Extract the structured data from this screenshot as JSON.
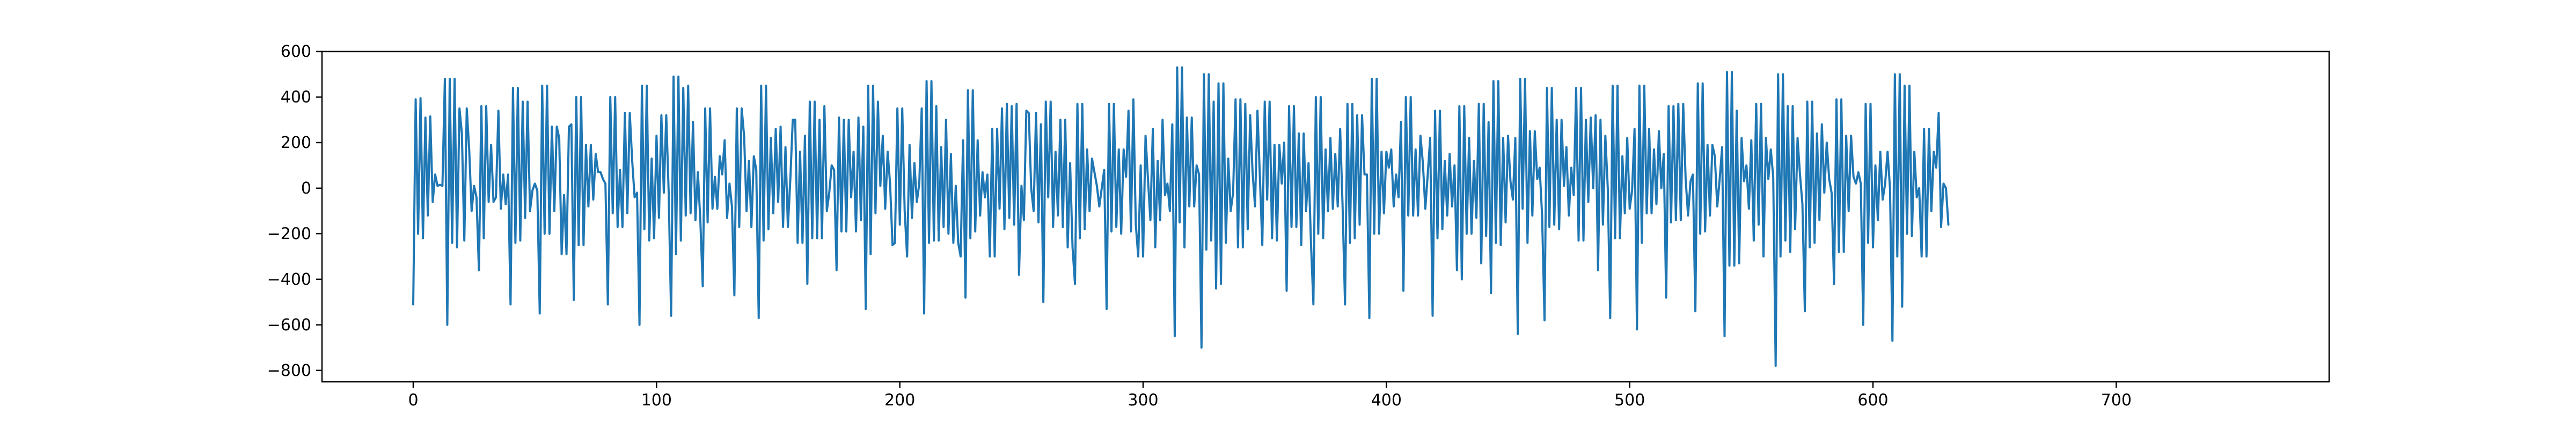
{
  "chart_data": {
    "type": "line",
    "title": "",
    "xlabel": "",
    "ylabel": "",
    "xlim": [
      -37.5,
      787.5
    ],
    "ylim": [
      -850,
      600
    ],
    "x_ticks": [
      0,
      100,
      200,
      300,
      400,
      500,
      600,
      700
    ],
    "x_tick_labels": [
      "0",
      "100",
      "200",
      "300",
      "400",
      "500",
      "600",
      "700"
    ],
    "y_ticks": [
      600,
      400,
      200,
      0,
      -200,
      -400,
      -600,
      -800
    ],
    "y_tick_labels": [
      "600",
      "400",
      "200",
      "0",
      "−200",
      "−400",
      "−600",
      "−800"
    ],
    "grid": false,
    "legend": "none",
    "series_color": "#1f77b4",
    "series": [
      {
        "x_start": 0,
        "x_step": 1,
        "values": [
          -510,
          390,
          -200,
          395,
          -220,
          310,
          -120,
          315,
          -60,
          60,
          10,
          15,
          10,
          480,
          -600,
          480,
          -240,
          480,
          -260,
          350,
          240,
          -230,
          350,
          170,
          -100,
          10,
          -40,
          -360,
          360,
          -220,
          360,
          -60,
          190,
          -60,
          -40,
          340,
          -90,
          60,
          -70,
          60,
          -510,
          440,
          -240,
          440,
          -230,
          380,
          -130,
          380,
          -100,
          -10,
          20,
          -10,
          -550,
          450,
          -200,
          450,
          -200,
          270,
          -100,
          270,
          220,
          -290,
          -30,
          -290,
          270,
          280,
          -490,
          400,
          -250,
          400,
          -250,
          190,
          -80,
          190,
          -50,
          150,
          70,
          70,
          40,
          20,
          -510,
          400,
          -110,
          400,
          -170,
          80,
          -170,
          330,
          -110,
          330,
          120,
          -40,
          -20,
          -600,
          450,
          -180,
          450,
          -230,
          130,
          -220,
          230,
          -130,
          320,
          -20,
          320,
          -20,
          -560,
          490,
          -290,
          490,
          -230,
          440,
          -120,
          450,
          -110,
          290,
          -140,
          70,
          -140,
          -430,
          350,
          -150,
          350,
          -90,
          50,
          -90,
          140,
          60,
          210,
          -130,
          20,
          -80,
          -470,
          350,
          -170,
          350,
          230,
          -100,
          120,
          -170,
          140,
          80,
          -570,
          450,
          -230,
          450,
          -180,
          220,
          -110,
          260,
          -60,
          270,
          -170,
          180,
          -170,
          40,
          300,
          300,
          -240,
          160,
          -240,
          230,
          -420,
          380,
          -220,
          380,
          -220,
          300,
          -220,
          360,
          -100,
          -20,
          100,
          80,
          -360,
          310,
          -190,
          300,
          -190,
          300,
          -40,
          160,
          -190,
          310,
          -140,
          270,
          -530,
          450,
          -290,
          450,
          -110,
          380,
          10,
          230,
          -90,
          160,
          20,
          -250,
          -240,
          350,
          -160,
          350,
          -100,
          -300,
          190,
          -130,
          110,
          -60,
          20,
          350,
          -550,
          470,
          -240,
          470,
          -230,
          360,
          -230,
          180,
          -170,
          300,
          -200,
          150,
          -240,
          10,
          -240,
          -300,
          210,
          -480,
          430,
          -220,
          430,
          -190,
          210,
          -120,
          70,
          -40,
          60,
          -300,
          260,
          -300,
          260,
          -90,
          350,
          -180,
          370,
          -130,
          360,
          -160,
          370,
          -380,
          10,
          -140,
          340,
          330,
          0,
          -100,
          330,
          -150,
          280,
          -500,
          380,
          -40,
          380,
          -170,
          160,
          -120,
          300,
          -170,
          300,
          -260,
          110,
          -260,
          -420,
          370,
          -220,
          370,
          -180,
          170,
          -100,
          130,
          70,
          10,
          -80,
          0,
          80,
          -530,
          370,
          -190,
          370,
          -170,
          170,
          -200,
          170,
          50,
          340,
          -190,
          390,
          -160,
          -300,
          100,
          -300,
          230,
          40,
          -140,
          260,
          -260,
          120,
          -140,
          300,
          -30,
          20,
          -100,
          280,
          -650,
          530,
          -150,
          530,
          -260,
          310,
          -80,
          310,
          -80,
          100,
          60,
          -700,
          500,
          -270,
          500,
          -230,
          380,
          -440,
          460,
          -420,
          460,
          -240,
          130,
          -100,
          -20,
          390,
          -260,
          390,
          -260,
          370,
          -180,
          320,
          70,
          -80,
          340,
          50,
          -250,
          380,
          -50,
          380,
          -220,
          190,
          -230,
          190,
          20,
          200,
          -450,
          360,
          -170,
          360,
          -170,
          240,
          -250,
          240,
          -100,
          110,
          -240,
          -510,
          400,
          -200,
          400,
          -220,
          170,
          -100,
          220,
          -90,
          150,
          -80,
          260,
          -80,
          -510,
          370,
          -240,
          370,
          -220,
          320,
          -160,
          320,
          60,
          60,
          -570,
          480,
          -200,
          480,
          -200,
          160,
          -110,
          160,
          90,
          170,
          -80,
          60,
          -40,
          290,
          -450,
          400,
          -120,
          400,
          -120,
          170,
          -120,
          230,
          110,
          -90,
          60,
          220,
          -560,
          340,
          -220,
          340,
          -180,
          120,
          -120,
          150,
          -80,
          100,
          -360,
          360,
          -400,
          360,
          -200,
          220,
          -200,
          120,
          -130,
          370,
          -330,
          370,
          -210,
          290,
          -460,
          470,
          -240,
          470,
          -250,
          220,
          -150,
          230,
          30,
          -50,
          220,
          -640,
          480,
          -90,
          480,
          -240,
          250,
          -120,
          250,
          40,
          90,
          -120,
          -580,
          440,
          -170,
          440,
          -160,
          300,
          -180,
          300,
          10,
          180,
          -120,
          90,
          -30,
          440,
          -230,
          440,
          -230,
          300,
          -60,
          310,
          0,
          320,
          -360,
          300,
          -160,
          230,
          0,
          -570,
          450,
          -220,
          450,
          -220,
          140,
          -110,
          220,
          -90,
          -10,
          260,
          -620,
          450,
          -240,
          450,
          -110,
          260,
          -110,
          170,
          -70,
          250,
          0,
          150,
          -480,
          360,
          -150,
          360,
          -140,
          370,
          -140,
          370,
          40,
          -120,
          30,
          60,
          -540,
          460,
          -200,
          460,
          -190,
          190,
          -120,
          190,
          140,
          -80,
          40,
          180,
          -650,
          510,
          -340,
          510,
          -340,
          340,
          -330,
          220,
          30,
          100,
          -90,
          210,
          -230,
          370,
          -160,
          370,
          -300,
          220,
          40,
          170,
          50,
          -780,
          500,
          -300,
          500,
          -230,
          360,
          -280,
          360,
          -180,
          220,
          60,
          -70,
          -540,
          380,
          -260,
          380,
          -240,
          240,
          -140,
          280,
          -20,
          200,
          40,
          -20,
          -420,
          390,
          -280,
          390,
          -280,
          230,
          -100,
          230,
          50,
          20,
          70,
          20,
          -600,
          370,
          -240,
          370,
          -260,
          100,
          -140,
          160,
          -50,
          20,
          160,
          0,
          -670,
          500,
          -300,
          500,
          -520,
          450,
          -200,
          450,
          -210,
          160,
          -40,
          0,
          -300,
          260,
          -300,
          260,
          -100,
          160,
          90,
          330,
          -170,
          20,
          0,
          -160
        ]
      }
    ]
  }
}
